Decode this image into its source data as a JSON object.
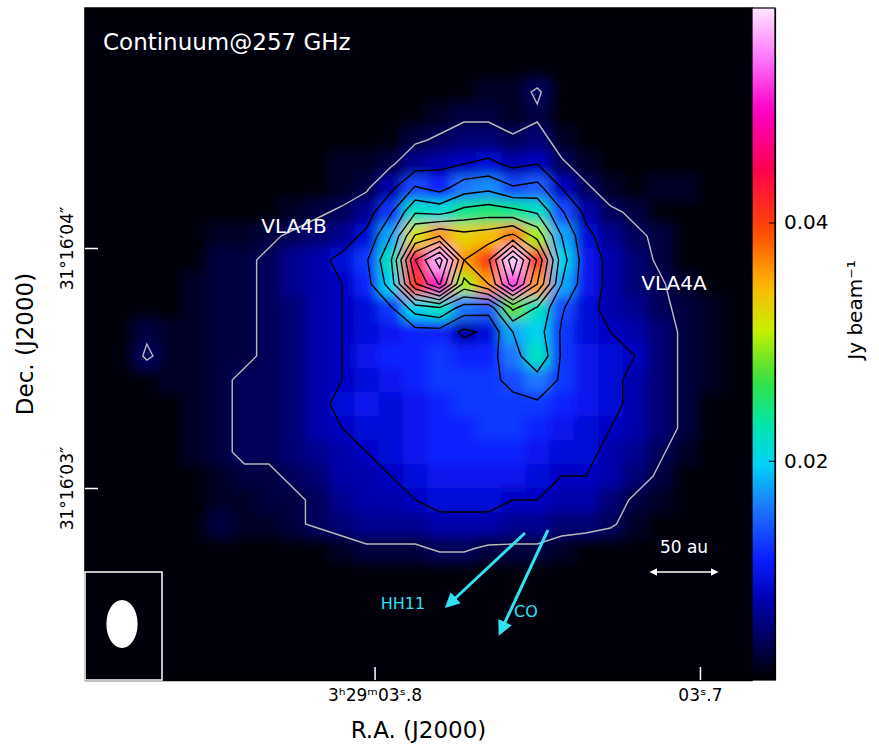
{
  "chart_data": {
    "type": "heatmap",
    "title": "Continuum@257 GHz",
    "x_label": "R.A. (J2000)",
    "y_label": "Dec. (J2000)",
    "annotations": [
      "VLA4B",
      "VLA4A",
      "HH11",
      "CO",
      "50 au"
    ],
    "xlim": [
      3.889,
      3.684
    ],
    "ylim": [
      2.2,
      5.0
    ],
    "xticks": [
      {
        "value": 3.8,
        "label": "3ʰ29ᵐ03ˢ.8"
      },
      {
        "value": 3.7,
        "label": "03ˢ.7"
      }
    ],
    "yticks": [
      {
        "value": 4,
        "label": "31°16′04″"
      },
      {
        "value": 3,
        "label": "31°16′03″"
      }
    ],
    "colorbar": {
      "label": "Jy beam⁻¹",
      "range": [
        0.0016,
        0.058
      ],
      "ticks": [
        0.02,
        0.04
      ]
    },
    "contour_levels": [
      0.0045,
      0.009,
      0.0135,
      0.018,
      0.0225,
      0.027,
      0.0315,
      0.036,
      0.0405,
      0.045,
      0.0495,
      0.054
    ],
    "beam": {
      "major": 0.2,
      "minor": 0.13
    },
    "x": [
      3.885,
      3.8775,
      3.87,
      3.8625,
      3.855,
      3.8475,
      3.84,
      3.8325,
      3.825,
      3.8175,
      3.81,
      3.8025,
      3.795,
      3.7875,
      3.78,
      3.7725,
      3.765,
      3.7575,
      3.75,
      3.7425,
      3.735,
      3.7275,
      3.72,
      3.7125,
      3.705,
      3.6975,
      3.69,
      3.6825
    ],
    "y": [
      4.95,
      4.85,
      4.75,
      4.65,
      4.55,
      4.45,
      4.35,
      4.25,
      4.15,
      4.05,
      3.95,
      3.85,
      3.75,
      3.65,
      3.55,
      3.45,
      3.35,
      3.25,
      3.15,
      3.05,
      2.95,
      2.85,
      2.75,
      2.65,
      2.55,
      2.45,
      2.35,
      2.25
    ],
    "z": [
      [
        0.002,
        0.002,
        0.002,
        0.002,
        0.002,
        0.002,
        0.002,
        0.002,
        0.002,
        0.002,
        0.002,
        0.002,
        0.002,
        0.002,
        0.002,
        0.002,
        0.002,
        0.002,
        0.002,
        0.002,
        0.002,
        0.002,
        0.002,
        0.002,
        0.002,
        0.002,
        0.002,
        0.002
      ],
      [
        0.002,
        0.002,
        0.002,
        0.002,
        0.002,
        0.002,
        0.002,
        0.002,
        0.002,
        0.002,
        0.002,
        0.002,
        0.002,
        0.002,
        0.002,
        0.002,
        0.002,
        0.002,
        0.002,
        0.002,
        0.002,
        0.002,
        0.002,
        0.002,
        0.002,
        0.002,
        0.002,
        0.002
      ],
      [
        0.002,
        0.002,
        0.002,
        0.002,
        0.002,
        0.002,
        0.002,
        0.002,
        0.002,
        0.002,
        0.002,
        0.002,
        0.002,
        0.002,
        0.002,
        0.002,
        0.002,
        0.002,
        0.002,
        0.002,
        0.002,
        0.002,
        0.002,
        0.002,
        0.002,
        0.002,
        0.002,
        0.002
      ],
      [
        0.002,
        0.002,
        0.002,
        0.002,
        0.002,
        0.002,
        0.002,
        0.002,
        0.002,
        0.002,
        0.002,
        0.002,
        0.002,
        0.002,
        0.002,
        0.002,
        0.003,
        0.003,
        0.005,
        0.002,
        0.002,
        0.002,
        0.002,
        0.002,
        0.002,
        0.002,
        0.002,
        0.002
      ],
      [
        0.002,
        0.002,
        0.002,
        0.002,
        0.002,
        0.002,
        0.002,
        0.002,
        0.002,
        0.002,
        0.002,
        0.002,
        0.002,
        0.002,
        0.003,
        0.004,
        0.004,
        0.003,
        0.004,
        0.002,
        0.002,
        0.002,
        0.002,
        0.002,
        0.002,
        0.002,
        0.002,
        0.002
      ],
      [
        0.002,
        0.002,
        0.002,
        0.002,
        0.002,
        0.002,
        0.002,
        0.002,
        0.002,
        0.002,
        0.002,
        0.002,
        0.002,
        0.004,
        0.005,
        0.006,
        0.006,
        0.005,
        0.006,
        0.003,
        0.002,
        0.002,
        0.002,
        0.002,
        0.002,
        0.002,
        0.002,
        0.002
      ],
      [
        0.002,
        0.002,
        0.002,
        0.002,
        0.002,
        0.002,
        0.002,
        0.002,
        0.002,
        0.002,
        0.003,
        0.003,
        0.004,
        0.007,
        0.008,
        0.009,
        0.01,
        0.008,
        0.009,
        0.005,
        0.003,
        0.002,
        0.002,
        0.002,
        0.002,
        0.002,
        0.002,
        0.002
      ],
      [
        0.002,
        0.002,
        0.002,
        0.002,
        0.002,
        0.002,
        0.002,
        0.002,
        0.002,
        0.002,
        0.003,
        0.004,
        0.008,
        0.014,
        0.012,
        0.016,
        0.017,
        0.014,
        0.015,
        0.009,
        0.005,
        0.003,
        0.002,
        0.003,
        0.003,
        0.002,
        0.002,
        0.002
      ],
      [
        0.002,
        0.002,
        0.002,
        0.002,
        0.002,
        0.002,
        0.002,
        0.002,
        0.003,
        0.004,
        0.005,
        0.007,
        0.013,
        0.022,
        0.021,
        0.024,
        0.025,
        0.024,
        0.022,
        0.014,
        0.008,
        0.005,
        0.004,
        0.002,
        0.002,
        0.002,
        0.002,
        0.002
      ],
      [
        0.002,
        0.002,
        0.002,
        0.002,
        0.002,
        0.003,
        0.003,
        0.004,
        0.005,
        0.006,
        0.007,
        0.01,
        0.018,
        0.032,
        0.036,
        0.033,
        0.034,
        0.037,
        0.03,
        0.018,
        0.01,
        0.007,
        0.005,
        0.004,
        0.002,
        0.002,
        0.002,
        0.002
      ],
      [
        0.002,
        0.002,
        0.002,
        0.002,
        0.002,
        0.004,
        0.004,
        0.005,
        0.007,
        0.008,
        0.01,
        0.013,
        0.022,
        0.045,
        0.056,
        0.036,
        0.04,
        0.057,
        0.04,
        0.02,
        0.011,
        0.008,
        0.006,
        0.004,
        0.002,
        0.002,
        0.002,
        0.002
      ],
      [
        0.002,
        0.002,
        0.002,
        0.002,
        0.003,
        0.004,
        0.004,
        0.005,
        0.007,
        0.008,
        0.009,
        0.012,
        0.02,
        0.04,
        0.05,
        0.03,
        0.036,
        0.052,
        0.036,
        0.018,
        0.011,
        0.008,
        0.006,
        0.005,
        0.003,
        0.002,
        0.002,
        0.002
      ],
      [
        0.002,
        0.002,
        0.002,
        0.002,
        0.003,
        0.004,
        0.004,
        0.005,
        0.006,
        0.008,
        0.009,
        0.01,
        0.013,
        0.02,
        0.022,
        0.016,
        0.015,
        0.028,
        0.022,
        0.014,
        0.01,
        0.008,
        0.007,
        0.005,
        0.004,
        0.003,
        0.002,
        0.002
      ],
      [
        0.002,
        0.002,
        0.004,
        0.003,
        0.003,
        0.004,
        0.004,
        0.005,
        0.006,
        0.008,
        0.009,
        0.01,
        0.011,
        0.012,
        0.012,
        0.008,
        0.01,
        0.018,
        0.02,
        0.013,
        0.01,
        0.009,
        0.008,
        0.006,
        0.004,
        0.003,
        0.002,
        0.002
      ],
      [
        0.002,
        0.002,
        0.005,
        0.003,
        0.003,
        0.004,
        0.004,
        0.005,
        0.006,
        0.008,
        0.009,
        0.011,
        0.012,
        0.012,
        0.013,
        0.012,
        0.012,
        0.016,
        0.022,
        0.013,
        0.011,
        0.01,
        0.009,
        0.006,
        0.004,
        0.003,
        0.002,
        0.002
      ],
      [
        0.002,
        0.002,
        0.002,
        0.003,
        0.003,
        0.004,
        0.005,
        0.005,
        0.006,
        0.008,
        0.009,
        0.01,
        0.011,
        0.012,
        0.013,
        0.013,
        0.013,
        0.014,
        0.016,
        0.013,
        0.011,
        0.01,
        0.008,
        0.006,
        0.004,
        0.003,
        0.002,
        0.002
      ],
      [
        0.002,
        0.002,
        0.002,
        0.002,
        0.003,
        0.004,
        0.005,
        0.005,
        0.006,
        0.008,
        0.01,
        0.011,
        0.01,
        0.011,
        0.012,
        0.013,
        0.013,
        0.013,
        0.013,
        0.012,
        0.011,
        0.01,
        0.008,
        0.006,
        0.004,
        0.002,
        0.002,
        0.002
      ],
      [
        0.002,
        0.002,
        0.002,
        0.002,
        0.003,
        0.004,
        0.005,
        0.005,
        0.006,
        0.008,
        0.009,
        0.01,
        0.01,
        0.011,
        0.012,
        0.012,
        0.013,
        0.013,
        0.012,
        0.011,
        0.01,
        0.009,
        0.008,
        0.006,
        0.004,
        0.002,
        0.002,
        0.002
      ],
      [
        0.002,
        0.002,
        0.002,
        0.002,
        0.003,
        0.004,
        0.005,
        0.005,
        0.006,
        0.007,
        0.008,
        0.009,
        0.01,
        0.011,
        0.012,
        0.012,
        0.012,
        0.012,
        0.011,
        0.01,
        0.01,
        0.008,
        0.007,
        0.005,
        0.003,
        0.002,
        0.002,
        0.002
      ],
      [
        0.002,
        0.002,
        0.002,
        0.002,
        0.002,
        0.003,
        0.004,
        0.004,
        0.005,
        0.006,
        0.008,
        0.008,
        0.009,
        0.01,
        0.011,
        0.011,
        0.011,
        0.011,
        0.01,
        0.009,
        0.009,
        0.008,
        0.006,
        0.004,
        0.002,
        0.002,
        0.002,
        0.002
      ],
      [
        0.002,
        0.002,
        0.002,
        0.002,
        0.002,
        0.003,
        0.003,
        0.004,
        0.004,
        0.005,
        0.007,
        0.008,
        0.008,
        0.009,
        0.01,
        0.01,
        0.01,
        0.009,
        0.009,
        0.008,
        0.008,
        0.006,
        0.004,
        0.003,
        0.002,
        0.002,
        0.002,
        0.002
      ],
      [
        0.002,
        0.002,
        0.002,
        0.002,
        0.002,
        0.004,
        0.003,
        0.003,
        0.004,
        0.005,
        0.006,
        0.007,
        0.007,
        0.007,
        0.008,
        0.008,
        0.008,
        0.007,
        0.007,
        0.006,
        0.006,
        0.005,
        0.003,
        0.002,
        0.002,
        0.002,
        0.002,
        0.002
      ],
      [
        0.002,
        0.002,
        0.002,
        0.002,
        0.002,
        0.002,
        0.002,
        0.002,
        0.002,
        0.002,
        0.003,
        0.004,
        0.004,
        0.004,
        0.005,
        0.005,
        0.004,
        0.004,
        0.004,
        0.003,
        0.002,
        0.002,
        0.002,
        0.002,
        0.002,
        0.002,
        0.002,
        0.002
      ],
      [
        0.002,
        0.002,
        0.002,
        0.002,
        0.002,
        0.002,
        0.002,
        0.002,
        0.002,
        0.002,
        0.002,
        0.002,
        0.002,
        0.002,
        0.002,
        0.002,
        0.002,
        0.002,
        0.002,
        0.002,
        0.002,
        0.002,
        0.002,
        0.002,
        0.002,
        0.002,
        0.002,
        0.002
      ],
      [
        0.002,
        0.002,
        0.002,
        0.002,
        0.002,
        0.002,
        0.002,
        0.002,
        0.002,
        0.002,
        0.002,
        0.002,
        0.002,
        0.002,
        0.002,
        0.002,
        0.002,
        0.002,
        0.002,
        0.002,
        0.002,
        0.002,
        0.002,
        0.002,
        0.002,
        0.002,
        0.002,
        0.002
      ],
      [
        0.002,
        0.002,
        0.002,
        0.002,
        0.002,
        0.002,
        0.002,
        0.002,
        0.002,
        0.002,
        0.002,
        0.002,
        0.002,
        0.002,
        0.002,
        0.002,
        0.002,
        0.002,
        0.002,
        0.002,
        0.002,
        0.002,
        0.002,
        0.002,
        0.002,
        0.002,
        0.002,
        0.002
      ],
      [
        0.002,
        0.002,
        0.002,
        0.002,
        0.002,
        0.002,
        0.002,
        0.002,
        0.002,
        0.002,
        0.002,
        0.002,
        0.002,
        0.002,
        0.002,
        0.002,
        0.002,
        0.002,
        0.002,
        0.002,
        0.002,
        0.002,
        0.002,
        0.002,
        0.002,
        0.002,
        0.002,
        0.002
      ],
      [
        0.002,
        0.002,
        0.002,
        0.002,
        0.002,
        0.002,
        0.002,
        0.002,
        0.002,
        0.002,
        0.002,
        0.002,
        0.002,
        0.002,
        0.002,
        0.002,
        0.002,
        0.002,
        0.002,
        0.002,
        0.002,
        0.002,
        0.002,
        0.002,
        0.002,
        0.002,
        0.002,
        0.002
      ]
    ]
  }
}
